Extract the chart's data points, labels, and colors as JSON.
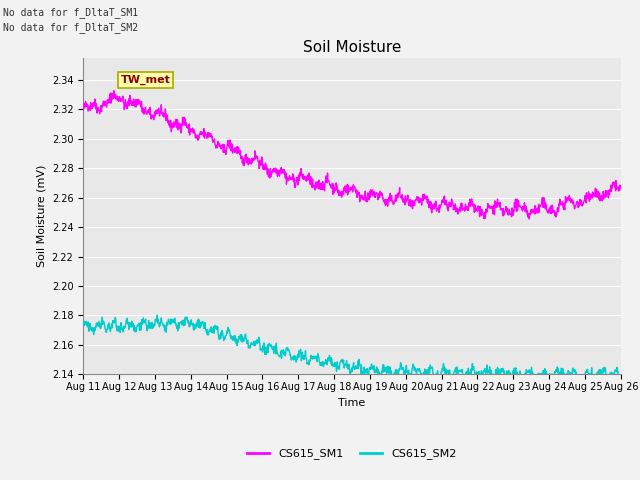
{
  "title": "Soil Moisture",
  "ylabel": "Soil Moisture (mV)",
  "xlabel": "Time",
  "no_data_text": [
    "No data for f_DltaT_SM1",
    "No data for f_DltaT_SM2"
  ],
  "tw_met_label": "TW_met",
  "legend_labels": [
    "CS615_SM1",
    "CS615_SM2"
  ],
  "line1_color": "#FF00FF",
  "line2_color": "#00CCCC",
  "ylim": [
    2.14,
    2.355
  ],
  "yticks": [
    2.14,
    2.16,
    2.18,
    2.2,
    2.22,
    2.24,
    2.26,
    2.28,
    2.3,
    2.32,
    2.34
  ],
  "xlim_days": [
    0,
    15
  ],
  "x_tick_labels": [
    "Aug 11",
    "Aug 12",
    "Aug 13",
    "Aug 14",
    "Aug 15",
    "Aug 16",
    "Aug 17",
    "Aug 18",
    "Aug 19",
    "Aug 20",
    "Aug 21",
    "Aug 22",
    "Aug 23",
    "Aug 24",
    "Aug 25",
    "Aug 26"
  ],
  "bg_color": "#E8E8E8",
  "grid_color": "#FFFFFF",
  "fig_bg_color": "#F2F2F2",
  "line_width": 1.0,
  "title_fontsize": 11,
  "label_fontsize": 8,
  "tick_fontsize": 7,
  "nodata_fontsize": 7,
  "legend_fontsize": 8
}
